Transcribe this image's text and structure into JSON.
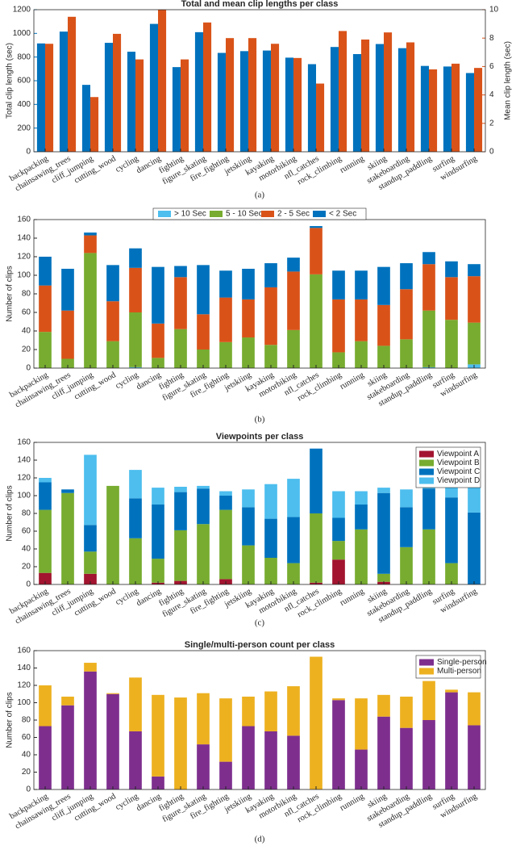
{
  "chart_data": [
    {
      "type": "bar",
      "title": "Total and mean clip lengths per class",
      "caption": "(a)",
      "ylabel": "Total clip length (sec)",
      "y2label": "Mean clip length (sec)",
      "categories": [
        "backpacking",
        "chainsawing_trees",
        "cliff_jumping",
        "cutting_wood",
        "cycling",
        "dancing",
        "fighting",
        "figure_skating",
        "fire_fighting",
        "jetskiing",
        "kayaking",
        "motorbiking",
        "nfl_catches",
        "rock_climbing",
        "running",
        "skiing",
        "stakeboarding",
        "standup_paddling",
        "surfing",
        "windsurfing"
      ],
      "series": [
        {
          "color": "#0072BD",
          "values": [
            915,
            1015,
            565,
            920,
            845,
            1080,
            715,
            1010,
            835,
            850,
            855,
            795,
            740,
            885,
            825,
            910,
            875,
            725,
            720,
            665
          ]
        },
        {
          "color": "#D95319",
          "axis": "y2",
          "values": [
            7.6,
            9.5,
            3.85,
            8.3,
            6.5,
            10,
            6.5,
            9.1,
            8.0,
            8.0,
            7.6,
            6.6,
            4.8,
            8.5,
            7.9,
            8.4,
            7.7,
            5.8,
            6.2,
            5.9
          ]
        }
      ],
      "ylim": [
        0,
        1200
      ],
      "yticks": [
        0,
        200,
        400,
        600,
        800,
        1000,
        1200
      ],
      "y2lim": [
        0,
        10
      ],
      "y2ticks": [
        0,
        2,
        4,
        6,
        8,
        10
      ]
    },
    {
      "type": "stacked_bar",
      "caption": "(b)",
      "ylabel": "Number of clips",
      "legend": "top",
      "categories": [
        "backpacking",
        "chainsawing_trees",
        "cliff_jumping",
        "cutting_wood",
        "cycling",
        "dancing",
        "fighting",
        "figure_skating",
        "fire_fighting",
        "jetskiing",
        "kayaking",
        "motorbiking",
        "nfl_catches",
        "rock_climbing",
        "running",
        "skiing",
        "stakeboarding",
        "standup_paddling",
        "surfing",
        "windsurfing"
      ],
      "series": [
        {
          "name": "> 10 Sec",
          "color": "#4DBEEE",
          "values": [
            0,
            0,
            0,
            0,
            1,
            0,
            0,
            0,
            0,
            0,
            0,
            0,
            0,
            0,
            0,
            0,
            0,
            1,
            0,
            4
          ]
        },
        {
          "name": "5 - 10 Sec",
          "color": "#77AC30",
          "values": [
            39,
            10,
            124,
            29,
            59,
            11,
            42,
            20,
            28,
            33,
            25,
            41,
            101,
            17,
            29,
            24,
            31,
            61,
            52,
            45
          ]
        },
        {
          "name": "2 - 5 Sec",
          "color": "#D95319",
          "values": [
            50,
            52,
            19,
            43,
            48,
            37,
            56,
            38,
            48,
            41,
            62,
            63,
            50,
            57,
            45,
            44,
            54,
            50,
            46,
            50
          ]
        },
        {
          "name": "< 2 Sec",
          "color": "#0072BD",
          "values": [
            31,
            45,
            3,
            39,
            21,
            61,
            12,
            53,
            29,
            33,
            26,
            15,
            2,
            31,
            31,
            41,
            28,
            13,
            17,
            13
          ]
        }
      ],
      "ylim": [
        0,
        160
      ],
      "yticks": [
        0,
        20,
        40,
        60,
        80,
        100,
        120,
        140,
        160
      ]
    },
    {
      "type": "stacked_bar",
      "title": "Viewpoints per class",
      "caption": "(c)",
      "ylabel": "Number of clips",
      "legend": "upper right",
      "categories": [
        "backpacking",
        "chainsawing_trees",
        "cliff_jumping",
        "cutting_wood",
        "cycling",
        "dancing",
        "fighting",
        "figure_skating",
        "fire_fighting",
        "jetskiing",
        "kayaking",
        "motorbiking",
        "nfl_catches",
        "rock_climbing",
        "running",
        "skiing",
        "stakeboarding",
        "standup_paddling",
        "surfing",
        "windsurfing"
      ],
      "series": [
        {
          "name": "Viewpoint A",
          "color": "#A2142F",
          "values": [
            13,
            0,
            12,
            0,
            0,
            2,
            4,
            0,
            6,
            0,
            0,
            0,
            2,
            28,
            0,
            3,
            0,
            0,
            0,
            0
          ]
        },
        {
          "name": "Viewpoint B",
          "color": "#77AC30",
          "values": [
            71,
            103,
            25,
            111,
            52,
            27,
            57,
            68,
            78,
            44,
            30,
            24,
            78,
            21,
            62,
            9,
            42,
            62,
            24,
            0
          ]
        },
        {
          "name": "Viewpoint C",
          "color": "#0072BD",
          "values": [
            31,
            4,
            30,
            0,
            45,
            61,
            43,
            40,
            16,
            43,
            44,
            52,
            73,
            26,
            28,
            91,
            45,
            46,
            74,
            81
          ]
        },
        {
          "name": "Viewpoint D",
          "color": "#4DBEEE",
          "values": [
            5,
            0,
            79,
            0,
            32,
            19,
            6,
            3,
            5,
            20,
            39,
            43,
            0,
            30,
            15,
            6,
            20,
            17,
            17,
            31
          ]
        }
      ],
      "ylim": [
        0,
        160
      ],
      "yticks": [
        0,
        20,
        40,
        60,
        80,
        100,
        120,
        140,
        160
      ]
    },
    {
      "type": "stacked_bar",
      "title": "Single/multi-person count per class",
      "caption": "(d)",
      "ylabel": "Number of clips",
      "legend": "upper right",
      "categories": [
        "backpacking",
        "chainsawing_trees",
        "cliff_jumping",
        "cutting_wood",
        "cycling",
        "dancing",
        "fighting",
        "figure_skating",
        "fire_fighting",
        "jetskiing",
        "kayaking",
        "motorbiking",
        "nfl_catches",
        "rock_climbing",
        "running",
        "skiing",
        "stakeboarding",
        "standup_paddling",
        "surfing",
        "windsurfing"
      ],
      "series": [
        {
          "name": "Single-person",
          "color": "#7E2F8E",
          "values": [
            73,
            97,
            136,
            110,
            67,
            15,
            0,
            52,
            32,
            73,
            67,
            62,
            0,
            103,
            46,
            84,
            71,
            80,
            112,
            74
          ]
        },
        {
          "name": "Multi-person",
          "color": "#EDB120",
          "values": [
            47,
            10,
            10,
            1,
            62,
            94,
            106,
            59,
            73,
            34,
            46,
            57,
            153,
            2,
            59,
            25,
            36,
            45,
            3,
            38
          ]
        }
      ],
      "ylim": [
        0,
        160
      ],
      "yticks": [
        0,
        20,
        40,
        60,
        80,
        100,
        120,
        140,
        160
      ]
    }
  ]
}
